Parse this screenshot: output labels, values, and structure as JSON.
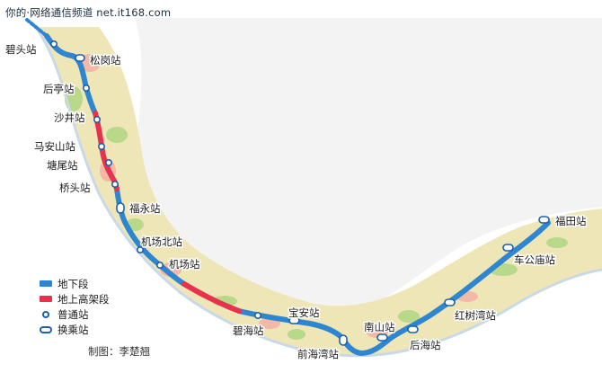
{
  "header": {
    "text": "你的·网络通信频道 net.it168.com"
  },
  "colors": {
    "underground": "#2f86d0",
    "elevated": "#e6324c",
    "station_stroke": "#1f5fa8"
  },
  "legend": {
    "underground": "地下段",
    "elevated": "地上高架段",
    "normal_station": "普通站",
    "transfer_station": "换乘站"
  },
  "credit": "制图：李楚翘",
  "stations": [
    {
      "id": "bitou",
      "name": "碧头站",
      "kind": "normal"
    },
    {
      "id": "songgang",
      "name": "松岗站",
      "kind": "transfer"
    },
    {
      "id": "houting",
      "name": "后亭站",
      "kind": "normal"
    },
    {
      "id": "shajing",
      "name": "沙井站",
      "kind": "normal"
    },
    {
      "id": "maanshan",
      "name": "马安山站",
      "kind": "normal"
    },
    {
      "id": "tangwei",
      "name": "塘尾站",
      "kind": "normal"
    },
    {
      "id": "qiaotou",
      "name": "桥头站",
      "kind": "normal"
    },
    {
      "id": "fuyong",
      "name": "福永站",
      "kind": "transfer"
    },
    {
      "id": "jichangbei",
      "name": "机场北站",
      "kind": "normal"
    },
    {
      "id": "jichang",
      "name": "机场站",
      "kind": "normal"
    },
    {
      "id": "bihai",
      "name": "碧海站",
      "kind": "normal"
    },
    {
      "id": "baoan",
      "name": "宝安站",
      "kind": "transfer"
    },
    {
      "id": "qianhaiwan",
      "name": "前海湾站",
      "kind": "transfer"
    },
    {
      "id": "nanshan",
      "name": "南山站",
      "kind": "transfer"
    },
    {
      "id": "houhai",
      "name": "后海站",
      "kind": "transfer"
    },
    {
      "id": "hongshuwan",
      "name": "红树湾站",
      "kind": "transfer"
    },
    {
      "id": "chegongmiao",
      "name": "车公庙站",
      "kind": "transfer"
    },
    {
      "id": "futian",
      "name": "福田站",
      "kind": "transfer"
    }
  ]
}
